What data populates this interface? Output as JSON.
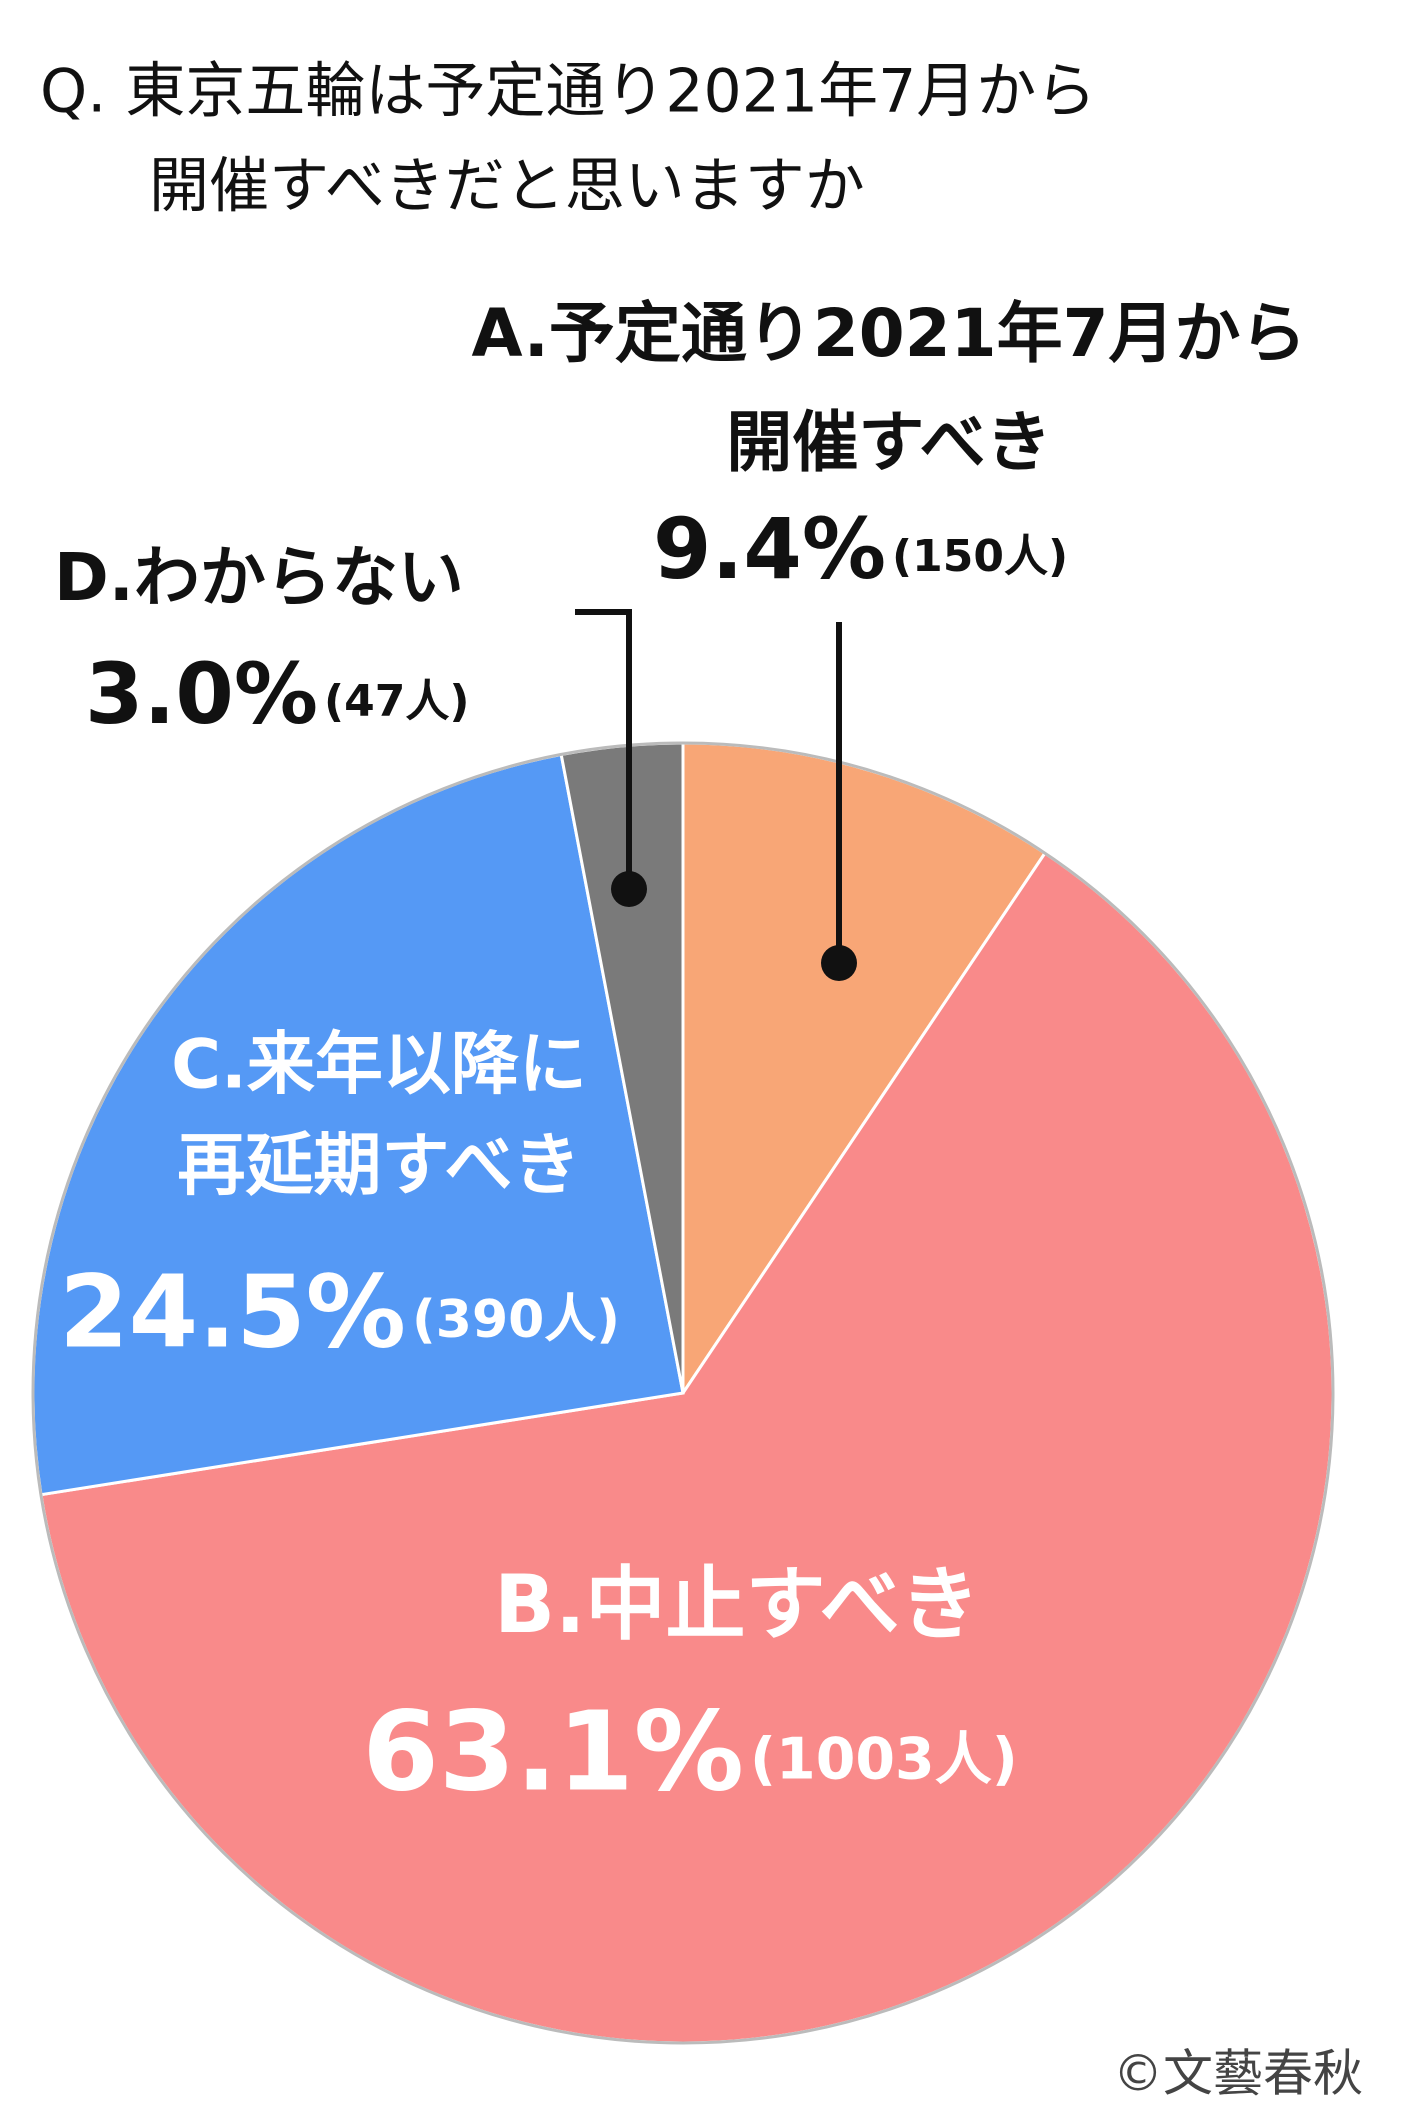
{
  "chart_data": {
    "type": "pie",
    "title": [
      "Q. 東京五輪は予定通り2021年7月から",
      "開催すべきだと思いますか"
    ],
    "categories": [
      [
        "A.予定通り2021年7月から",
        "開催すべき"
      ],
      [
        "B.中止すべき"
      ],
      [
        "C.来年以降に",
        "再延期すべき"
      ],
      [
        "D.わからない"
      ]
    ],
    "values": [
      9.4,
      63.1,
      24.5,
      3.0
    ],
    "value_labels": [
      "9.4%",
      "63.1%",
      "24.5%",
      "3.0%"
    ],
    "count_labels": [
      "(150人)",
      "(1003人)",
      "(390人)",
      "(47人)"
    ],
    "colors": [
      "#f8a676",
      "#f98a8a",
      "#5599f5",
      "#7a7a7a"
    ],
    "credit": "©文藝春秋"
  }
}
